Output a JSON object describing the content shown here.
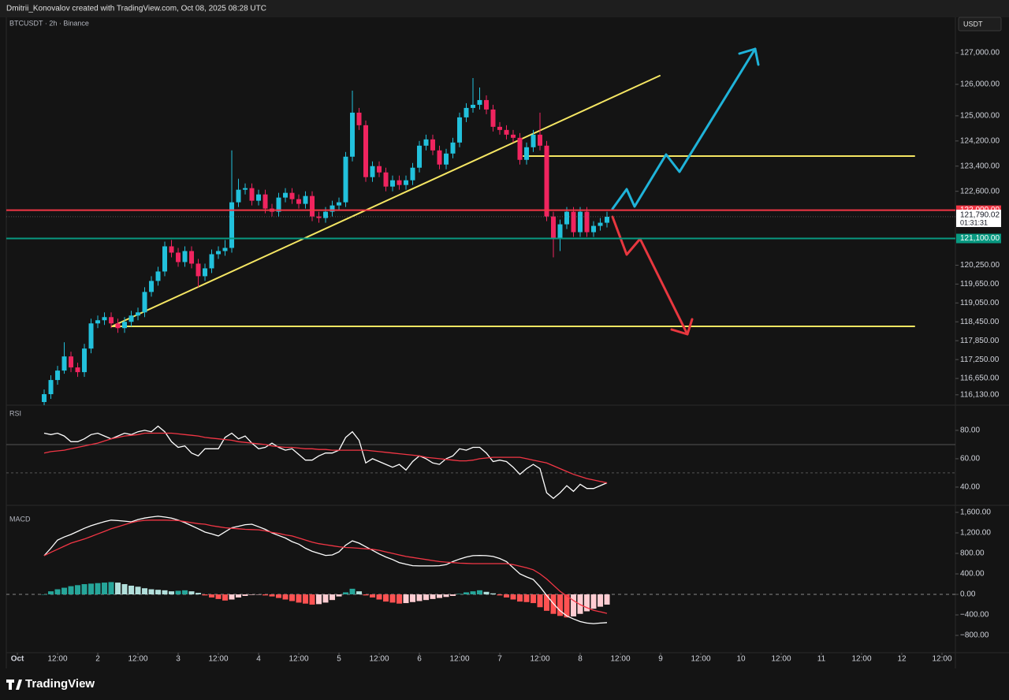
{
  "header": {
    "attribution": "Dmitrii_Konovalov created with TradingView.com, Oct 08, 2025 08:28 UTC"
  },
  "chart_data": {
    "type": "candlestick",
    "symbol": "BTCUSDT · 2h · Binance",
    "currency": "USDT",
    "x": [
      8,
      10,
      12,
      14,
      16,
      18,
      20,
      22,
      24,
      26,
      28,
      30,
      32,
      34,
      36,
      38,
      40,
      42,
      44,
      46,
      48,
      50,
      52,
      54,
      56,
      58,
      60,
      62,
      64,
      66,
      68,
      70,
      72,
      74,
      76,
      78,
      80,
      82,
      84,
      86,
      88,
      90,
      92,
      94,
      96,
      98,
      100,
      102,
      104,
      106,
      108,
      110,
      112,
      114,
      116,
      118,
      120,
      122,
      124,
      126,
      128,
      130,
      132,
      134,
      136,
      138,
      140,
      142,
      144,
      146,
      148,
      150,
      152,
      154,
      156,
      158,
      160,
      162,
      164,
      166,
      168,
      170,
      172,
      174,
      176
    ],
    "xlim": [
      -3.3,
      280
    ],
    "xticks": [
      {
        "value": 0,
        "label": "Oct"
      },
      {
        "value": 12,
        "label": "12:00"
      },
      {
        "value": 24,
        "label": "2"
      },
      {
        "value": 36,
        "label": "12:00"
      },
      {
        "value": 48,
        "label": "3"
      },
      {
        "value": 60,
        "label": "12:00"
      },
      {
        "value": 72,
        "label": "4"
      },
      {
        "value": 84,
        "label": "12:00"
      },
      {
        "value": 96,
        "label": "5"
      },
      {
        "value": 108,
        "label": "12:00"
      },
      {
        "value": 120,
        "label": "6"
      },
      {
        "value": 132,
        "label": "12:00"
      },
      {
        "value": 144,
        "label": "7"
      },
      {
        "value": 156,
        "label": "12:00"
      },
      {
        "value": 168,
        "label": "8"
      },
      {
        "value": 180,
        "label": "12:00"
      },
      {
        "value": 192,
        "label": "9"
      },
      {
        "value": 204,
        "label": "12:00"
      },
      {
        "value": 216,
        "label": "10"
      },
      {
        "value": 228,
        "label": "12:00"
      },
      {
        "value": 240,
        "label": "11"
      },
      {
        "value": 252,
        "label": "12:00"
      },
      {
        "value": 264,
        "label": "12"
      },
      {
        "value": 276,
        "label": "12:00"
      }
    ],
    "open": [
      115900,
      116150,
      116600,
      116900,
      117350,
      117000,
      116850,
      117600,
      118400,
      118500,
      118600,
      118400,
      118250,
      118450,
      118650,
      118750,
      119400,
      119750,
      120050,
      120850,
      120650,
      120350,
      120700,
      120300,
      119900,
      120150,
      120600,
      120700,
      120800,
      122250,
      122650,
      122700,
      122300,
      122500,
      122050,
      121950,
      122400,
      122550,
      122350,
      122200,
      122450,
      121800,
      121750,
      121950,
      122150,
      122250,
      123700,
      125100,
      124700,
      123050,
      123400,
      123200,
      122750,
      122950,
      122800,
      122950,
      123350,
      124050,
      124250,
      123900,
      123450,
      123800,
      124150,
      124950,
      125250,
      125350,
      125500,
      125200,
      124650,
      124550,
      124400,
      124300,
      123600,
      124000,
      124400,
      124050,
      121800,
      121100,
      121550,
      121950,
      121300,
      121950,
      121300,
      121500,
      121600
    ],
    "high": [
      116300,
      116750,
      117050,
      117800,
      117500,
      117150,
      117750,
      118550,
      118650,
      118750,
      118750,
      118550,
      118600,
      118800,
      118900,
      119550,
      119900,
      120200,
      121000,
      121050,
      120800,
      120850,
      120850,
      120450,
      120300,
      120750,
      120850,
      121050,
      123900,
      123000,
      122850,
      122850,
      122650,
      122650,
      122200,
      122550,
      122700,
      122700,
      122500,
      122600,
      122600,
      121950,
      122100,
      122300,
      122400,
      123850,
      125800,
      125250,
      124850,
      123550,
      123550,
      123350,
      123100,
      123100,
      123100,
      123500,
      124200,
      124400,
      124400,
      124050,
      123950,
      124300,
      125100,
      125400,
      126200,
      125900,
      125650,
      125350,
      124800,
      124700,
      124550,
      124450,
      124150,
      124550,
      125100,
      124200,
      121950,
      121700,
      122100,
      122100,
      122100,
      122100,
      121650,
      121750,
      121950
    ],
    "low": [
      115750,
      116000,
      116450,
      116800,
      116850,
      116700,
      116700,
      117450,
      118250,
      118350,
      118250,
      118100,
      118100,
      118300,
      118500,
      118600,
      119250,
      119600,
      119900,
      120500,
      120200,
      120200,
      120150,
      119550,
      119750,
      120000,
      120450,
      120550,
      120650,
      122100,
      122500,
      122150,
      122150,
      121900,
      121800,
      121800,
      122250,
      122200,
      122050,
      122050,
      121650,
      121600,
      121600,
      121800,
      122000,
      122100,
      123550,
      124550,
      122900,
      122900,
      123050,
      122600,
      122600,
      122650,
      122650,
      122800,
      123200,
      123900,
      123750,
      123300,
      123300,
      123650,
      124000,
      124800,
      125100,
      125200,
      125050,
      124500,
      124400,
      124250,
      124150,
      123450,
      123450,
      123850,
      123900,
      121650,
      120500,
      120700,
      121400,
      121150,
      121150,
      121150,
      121150,
      121350,
      121450
    ],
    "close": [
      116150,
      116600,
      116900,
      117350,
      117000,
      116850,
      117600,
      118400,
      118500,
      118600,
      118400,
      118250,
      118450,
      118650,
      118750,
      119400,
      119750,
      120050,
      120850,
      120650,
      120350,
      120700,
      120300,
      119900,
      120150,
      120600,
      120700,
      120800,
      122250,
      122650,
      122700,
      122300,
      122500,
      122050,
      121950,
      122400,
      122550,
      122350,
      122200,
      122450,
      121800,
      121750,
      121950,
      122150,
      122250,
      123700,
      125100,
      124700,
      123050,
      123400,
      123200,
      122750,
      122950,
      122800,
      122950,
      123350,
      124050,
      124250,
      123900,
      123450,
      123800,
      124150,
      124950,
      125250,
      125350,
      125500,
      125200,
      124650,
      124550,
      124400,
      124300,
      123600,
      124000,
      124400,
      124050,
      121800,
      121100,
      121550,
      121950,
      121300,
      121950,
      121300,
      121500,
      121600,
      121790
    ],
    "up_color": "#22c1dc",
    "down_color": "#f0245f",
    "ylim": [
      115800,
      128130
    ],
    "yticks": [
      {
        "value": 127000,
        "label": "127,000.00"
      },
      {
        "value": 126000,
        "label": "126,000.00"
      },
      {
        "value": 125000,
        "label": "125,000.00"
      },
      {
        "value": 124200,
        "label": "124,200.00"
      },
      {
        "value": 123400,
        "label": "123,400.00"
      },
      {
        "value": 122600,
        "label": "122,600.00"
      },
      {
        "value": 120250,
        "label": "120,250.00"
      },
      {
        "value": 119650,
        "label": "119,650.00"
      },
      {
        "value": 119050,
        "label": "119,050.00"
      },
      {
        "value": 118450,
        "label": "118,450.00"
      },
      {
        "value": 117850,
        "label": "117,850.00"
      },
      {
        "value": 117250,
        "label": "117,250.00"
      },
      {
        "value": 116650,
        "label": "116,650.00"
      },
      {
        "value": 116130,
        "label": "116,130.00"
      }
    ],
    "levels": [
      {
        "value": 122000,
        "label": "122,000.00",
        "color": "#f23645"
      },
      {
        "value": 121100,
        "label": "121,100.00",
        "color": "#089981"
      }
    ],
    "last_price": {
      "value": 121790.02,
      "label": "121,790.02"
    },
    "countdown": "01:31:31",
    "rsi": {
      "title": "RSI",
      "ylim": [
        29.4,
        97.2
      ],
      "yticks": [
        {
          "value": 80,
          "label": "80.00"
        },
        {
          "value": 60,
          "label": "60.00"
        },
        {
          "value": 40,
          "label": "40.00"
        }
      ],
      "levels": [
        70,
        50
      ],
      "series": [
        {
          "color": "#ffffff",
          "values": [
            78,
            77,
            78,
            76,
            72,
            72,
            74,
            77,
            78,
            76,
            74,
            76,
            78,
            77,
            79,
            80,
            79,
            83,
            79,
            72,
            68,
            69,
            64,
            62,
            67,
            67,
            67,
            75,
            78,
            74,
            76,
            71,
            67,
            68,
            71,
            68,
            66,
            67,
            63,
            59,
            59,
            62,
            64,
            64,
            66,
            75,
            79,
            73,
            57,
            60,
            58,
            56,
            54,
            56,
            52,
            58,
            62,
            60,
            57,
            56,
            60,
            62,
            67,
            66,
            68,
            68,
            64,
            58,
            59,
            58,
            54,
            49,
            53,
            56,
            53,
            36,
            32,
            36,
            41,
            37,
            42,
            39,
            39,
            41,
            43
          ]
        },
        {
          "color": "#f23645",
          "values": [
            64,
            65,
            65.5,
            66,
            67,
            68,
            69,
            70,
            71,
            72.5,
            74,
            75,
            76,
            76.5,
            77,
            78,
            78,
            78,
            78,
            78,
            77.5,
            77,
            76.5,
            76,
            75,
            74.5,
            74,
            73.5,
            73,
            72,
            71.5,
            71,
            70.5,
            70,
            69,
            68.5,
            68,
            68,
            67.5,
            67,
            67,
            66.5,
            66.5,
            66,
            66,
            66,
            66,
            66,
            66,
            65.5,
            65,
            64.5,
            64,
            63.5,
            63,
            62.5,
            62,
            61,
            60.5,
            60,
            59.5,
            59,
            58.5,
            58.5,
            59,
            60,
            60.5,
            61,
            61,
            61,
            61,
            61,
            60,
            59,
            58,
            57,
            55,
            53,
            51,
            49,
            47.5,
            46,
            45,
            44,
            43
          ]
        }
      ]
    },
    "macd": {
      "title": "MACD",
      "ylim": [
        -1138,
        1677
      ],
      "yticks": [
        {
          "value": 1600,
          "label": "1,600.00"
        },
        {
          "value": 1200,
          "label": "1,200.00"
        },
        {
          "value": 800,
          "label": "800.00"
        },
        {
          "value": 400,
          "label": "400.00"
        },
        {
          "value": 0,
          "label": "0.00"
        },
        {
          "value": -400,
          "label": "−400.00"
        },
        {
          "value": -800,
          "label": "−800.00"
        }
      ],
      "series": [
        {
          "color": "#ffffff",
          "values": [
            755,
            900,
            1060,
            1120,
            1170,
            1230,
            1290,
            1340,
            1380,
            1420,
            1450,
            1440,
            1430,
            1415,
            1460,
            1490,
            1510,
            1525,
            1510,
            1490,
            1450,
            1400,
            1340,
            1280,
            1215,
            1180,
            1140,
            1220,
            1300,
            1330,
            1360,
            1370,
            1320,
            1270,
            1200,
            1150,
            1100,
            1030,
            980,
            900,
            840,
            800,
            760,
            770,
            830,
            960,
            1045,
            1000,
            930,
            860,
            790,
            730,
            680,
            620,
            590,
            560,
            555,
            555,
            555,
            560,
            580,
            640,
            690,
            730,
            755,
            760,
            755,
            740,
            700,
            640,
            520,
            400,
            340,
            290,
            150,
            -20,
            -180,
            -320,
            -420,
            -480,
            -530,
            -560,
            -570,
            -560,
            -550
          ]
        },
        {
          "color": "#f23645",
          "values": [
            755,
            820,
            880,
            940,
            1000,
            1040,
            1080,
            1130,
            1180,
            1230,
            1280,
            1320,
            1360,
            1400,
            1430,
            1445,
            1450,
            1450,
            1450,
            1445,
            1440,
            1420,
            1400,
            1380,
            1370,
            1340,
            1320,
            1300,
            1290,
            1280,
            1270,
            1265,
            1260,
            1240,
            1210,
            1190,
            1160,
            1140,
            1100,
            1060,
            1020,
            990,
            970,
            950,
            930,
            915,
            910,
            900,
            890,
            880,
            860,
            830,
            800,
            770,
            740,
            720,
            700,
            680,
            660,
            640,
            630,
            620,
            610,
            605,
            600,
            600,
            600,
            600,
            600,
            600,
            580,
            550,
            520,
            480,
            400,
            300,
            180,
            60,
            -30,
            -120,
            -200,
            -260,
            -310,
            -340,
            -370
          ]
        }
      ],
      "histogram": {
        "values": [
          0,
          60,
          100,
          130,
          160,
          180,
          200,
          210,
          220,
          230,
          240,
          230,
          200,
          170,
          150,
          120,
          100,
          90,
          80,
          60,
          70,
          80,
          60,
          30,
          -20,
          -60,
          -90,
          -120,
          -100,
          -60,
          -30,
          -10,
          -5,
          -20,
          -40,
          -70,
          -100,
          -130,
          -160,
          -180,
          -200,
          -190,
          -160,
          -110,
          -40,
          40,
          110,
          60,
          -20,
          -60,
          -100,
          -140,
          -160,
          -180,
          -170,
          -150,
          -130,
          -110,
          -90,
          -70,
          -50,
          -30,
          10,
          40,
          60,
          80,
          50,
          20,
          -20,
          -60,
          -100,
          -140,
          -150,
          -170,
          -250,
          -320,
          -380,
          -420,
          -450,
          -430,
          -380,
          -330,
          -280,
          -240,
          -200
        ],
        "colors": [
          "#26a69a",
          "#b2dfdb",
          "#ff5252",
          "#ffcdd2"
        ]
      },
      "zero_line": true
    }
  },
  "footer": {
    "brand": "TradingView"
  }
}
